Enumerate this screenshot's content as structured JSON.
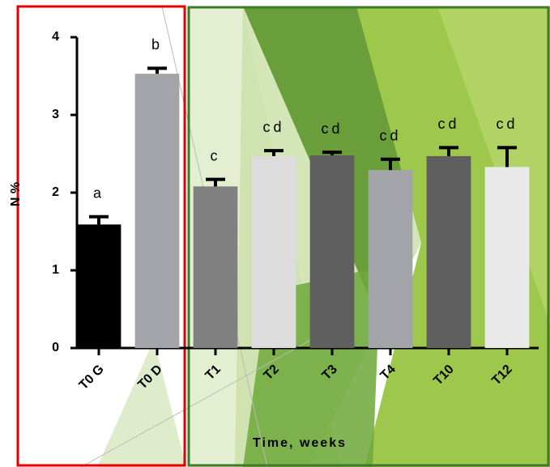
{
  "chart_data": {
    "type": "bar",
    "y_label": "N %",
    "x_label": "Time, weeks",
    "categories": [
      "T0 G",
      "T0 D",
      "T1",
      "T2",
      "T3",
      "T4",
      "T10",
      "T12"
    ],
    "values": [
      1.59,
      3.53,
      2.08,
      2.47,
      2.48,
      2.29,
      2.47,
      2.33
    ],
    "errors": [
      0.1,
      0.07,
      0.09,
      0.07,
      0.04,
      0.14,
      0.11,
      0.25
    ],
    "letters": [
      "a",
      "b",
      "c",
      "cd",
      "cd",
      "cd",
      "cd",
      "cd"
    ],
    "colors": [
      "#000000",
      "#a3a3aa",
      "#808080",
      "#dcdcdc",
      "#5f5f5f",
      "#a3a3aa",
      "#5f5f5f",
      "#e9e9e9"
    ],
    "ylim": [
      0,
      4
    ],
    "yticks": [
      0,
      1,
      2,
      3,
      4
    ]
  }
}
